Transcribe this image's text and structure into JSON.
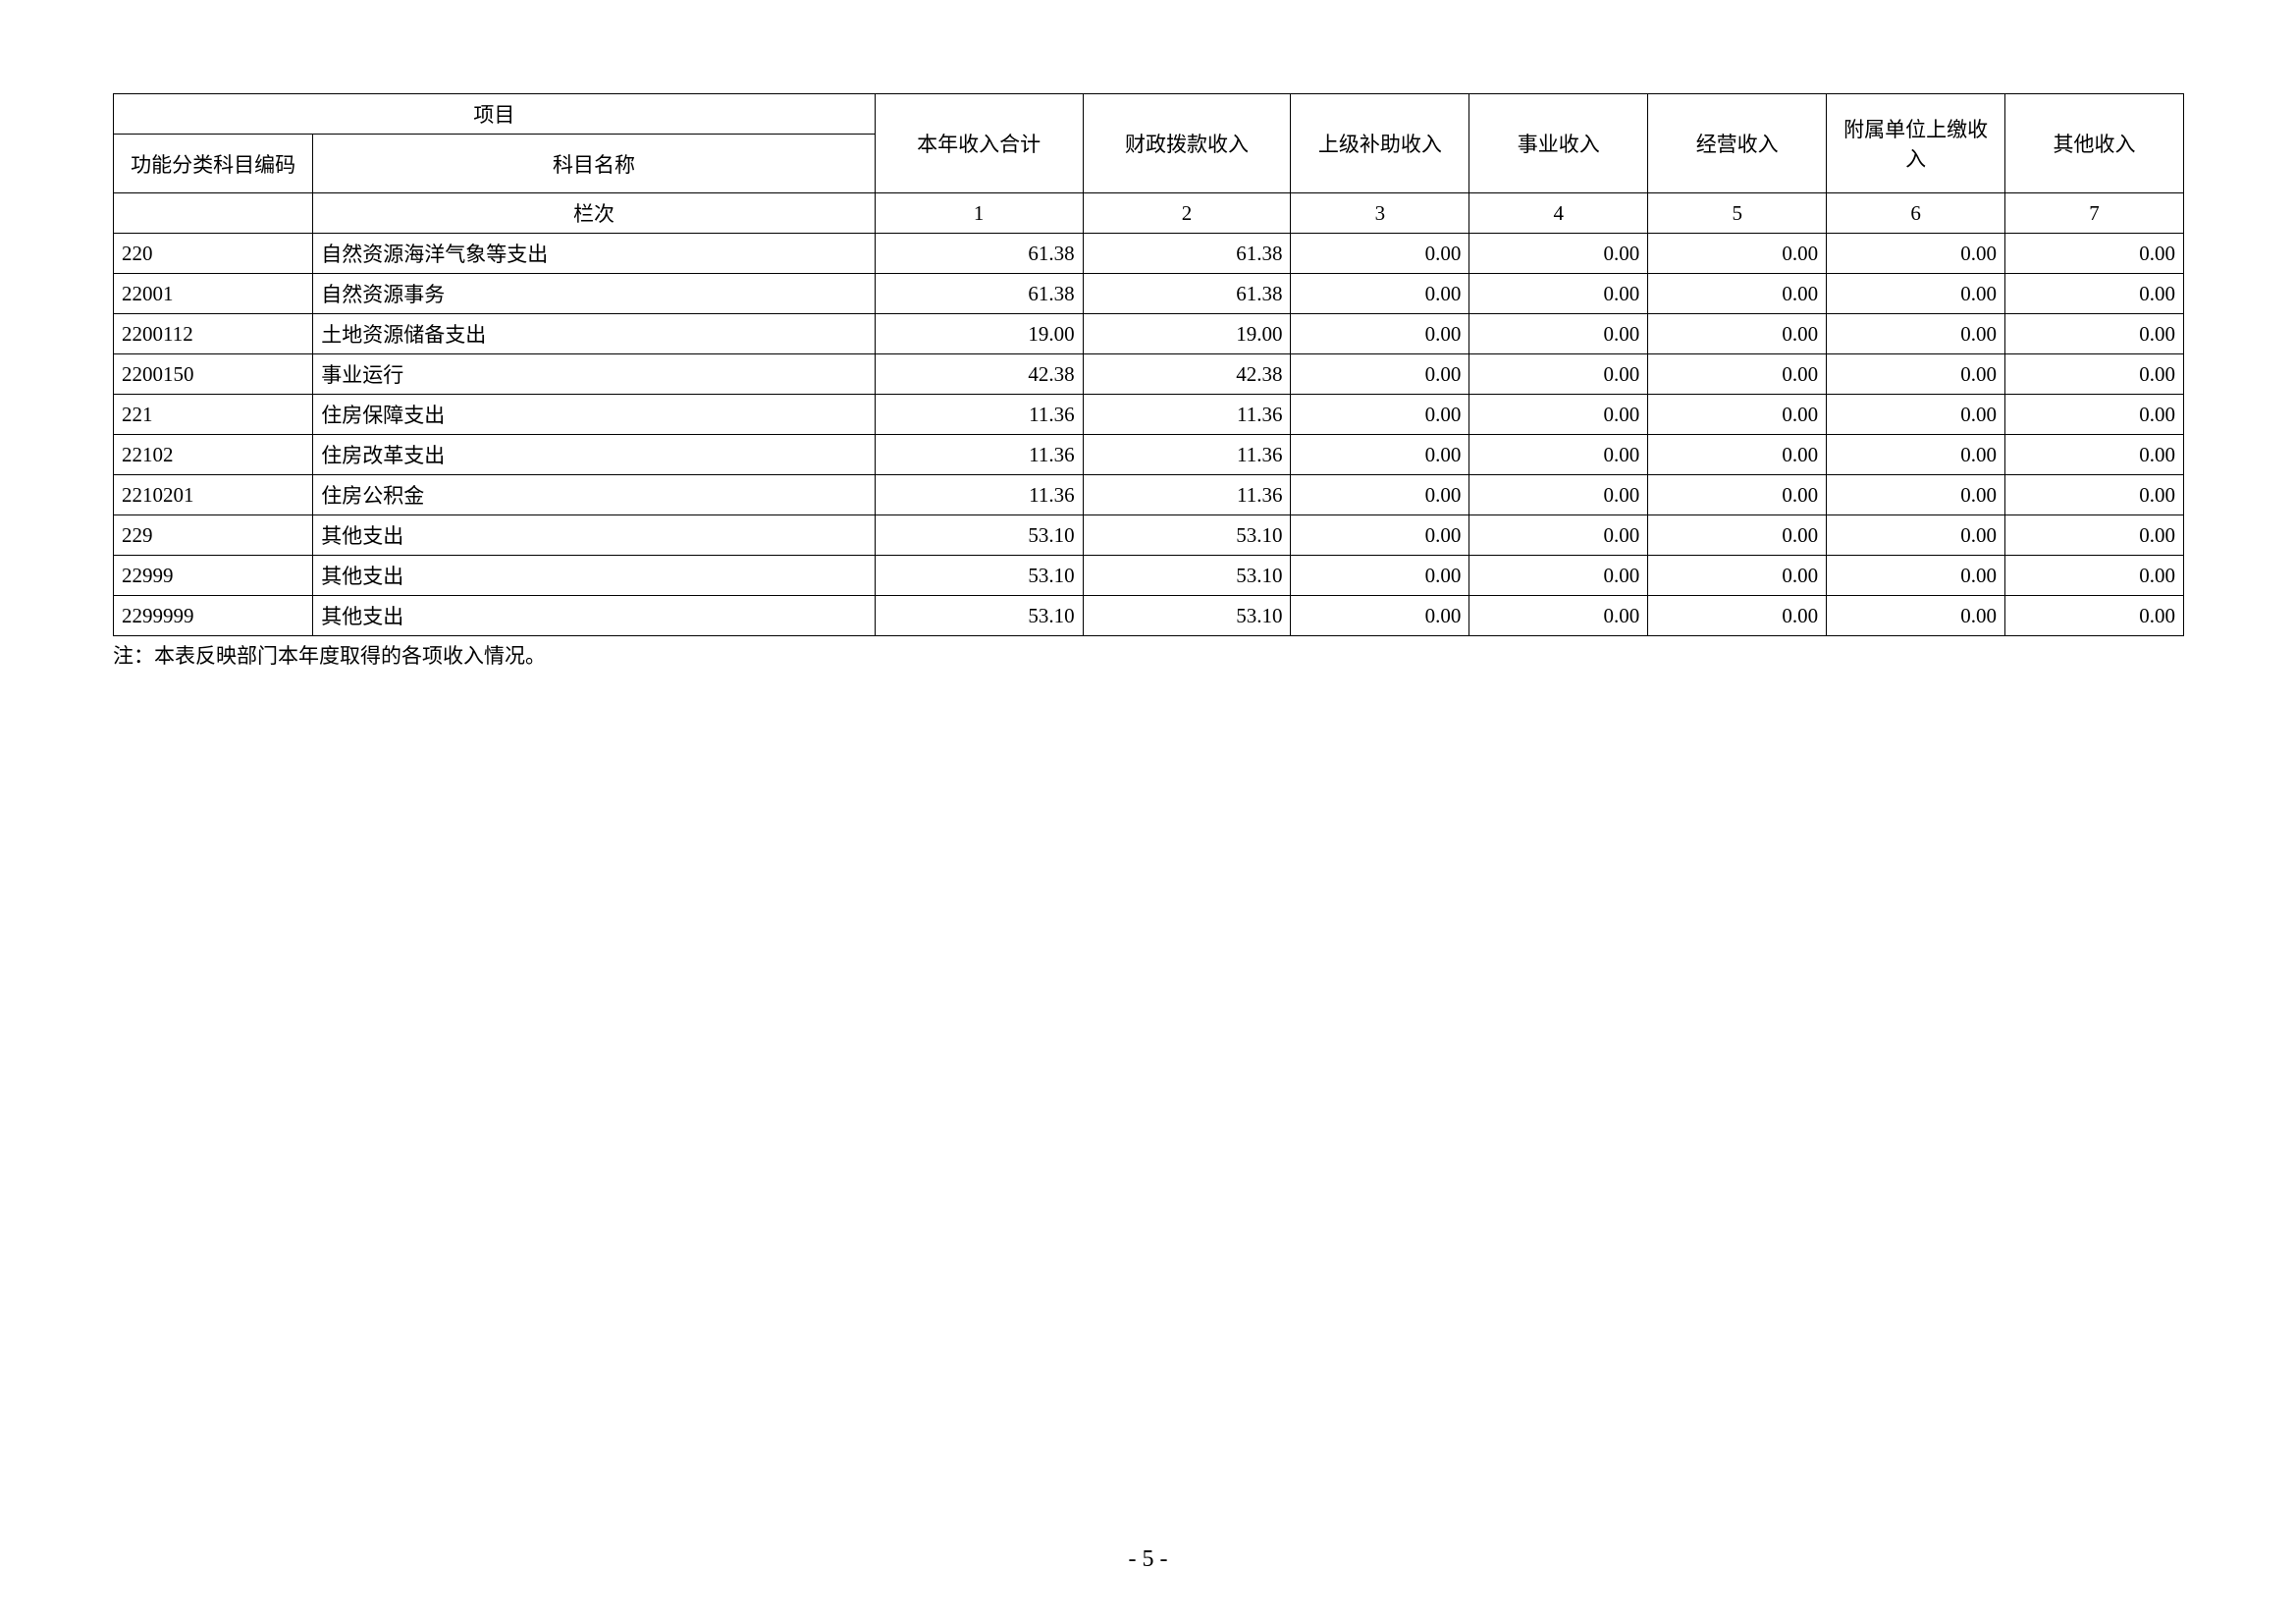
{
  "header": {
    "project": "项目",
    "code": "功能分类科目编码",
    "name": "科目名称",
    "col1": "本年收入合计",
    "col2": "财政拨款收入",
    "col3": "上级补助收入",
    "col4": "事业收入",
    "col5": "经营收入",
    "col6": "附属单位上缴收入",
    "col7": "其他收入",
    "lanci": "栏次",
    "n1": "1",
    "n2": "2",
    "n3": "3",
    "n4": "4",
    "n5": "5",
    "n6": "6",
    "n7": "7"
  },
  "rows": [
    {
      "code": "220",
      "name": "自然资源海洋气象等支出",
      "v1": "61.38",
      "v2": "61.38",
      "v3": "0.00",
      "v4": "0.00",
      "v5": "0.00",
      "v6": "0.00",
      "v7": "0.00"
    },
    {
      "code": "22001",
      "name": "自然资源事务",
      "v1": "61.38",
      "v2": "61.38",
      "v3": "0.00",
      "v4": "0.00",
      "v5": "0.00",
      "v6": "0.00",
      "v7": "0.00"
    },
    {
      "code": "2200112",
      "name": "土地资源储备支出",
      "v1": "19.00",
      "v2": "19.00",
      "v3": "0.00",
      "v4": "0.00",
      "v5": "0.00",
      "v6": "0.00",
      "v7": "0.00"
    },
    {
      "code": "2200150",
      "name": "事业运行",
      "v1": "42.38",
      "v2": "42.38",
      "v3": "0.00",
      "v4": "0.00",
      "v5": "0.00",
      "v6": "0.00",
      "v7": "0.00"
    },
    {
      "code": "221",
      "name": "住房保障支出",
      "v1": "11.36",
      "v2": "11.36",
      "v3": "0.00",
      "v4": "0.00",
      "v5": "0.00",
      "v6": "0.00",
      "v7": "0.00"
    },
    {
      "code": "22102",
      "name": "住房改革支出",
      "v1": "11.36",
      "v2": "11.36",
      "v3": "0.00",
      "v4": "0.00",
      "v5": "0.00",
      "v6": "0.00",
      "v7": "0.00"
    },
    {
      "code": "2210201",
      "name": "住房公积金",
      "v1": "11.36",
      "v2": "11.36",
      "v3": "0.00",
      "v4": "0.00",
      "v5": "0.00",
      "v6": "0.00",
      "v7": "0.00"
    },
    {
      "code": "229",
      "name": "其他支出",
      "v1": "53.10",
      "v2": "53.10",
      "v3": "0.00",
      "v4": "0.00",
      "v5": "0.00",
      "v6": "0.00",
      "v7": "0.00"
    },
    {
      "code": "22999",
      "name": "其他支出",
      "v1": "53.10",
      "v2": "53.10",
      "v3": "0.00",
      "v4": "0.00",
      "v5": "0.00",
      "v6": "0.00",
      "v7": "0.00"
    },
    {
      "code": "2299999",
      "name": "其他支出",
      "v1": "53.10",
      "v2": "53.10",
      "v3": "0.00",
      "v4": "0.00",
      "v5": "0.00",
      "v6": "0.00",
      "v7": "0.00"
    }
  ],
  "note": "注：本表反映部门本年度取得的各项收入情况。",
  "page_number": "- 5 -"
}
